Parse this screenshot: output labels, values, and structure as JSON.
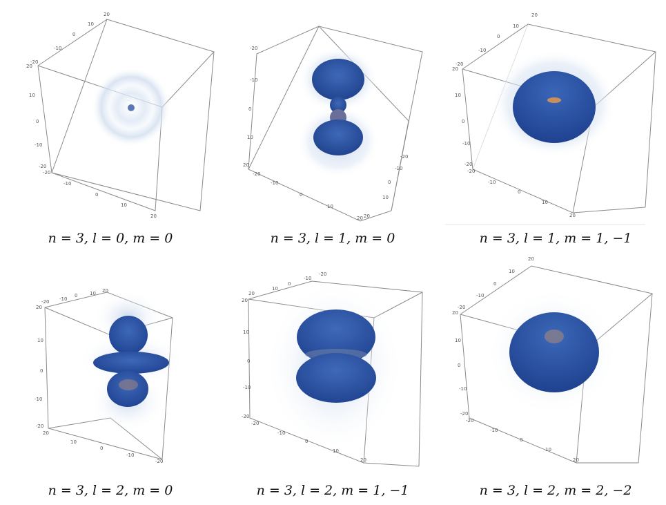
{
  "panels": [
    {
      "caption": "n = 3, l = 0, m = 0",
      "ticks": [
        "20",
        "10",
        "0",
        "-10",
        "-20",
        "20",
        "10",
        "0",
        "-10",
        "-20",
        "-20",
        "-10",
        "0",
        "10",
        "20"
      ]
    },
    {
      "caption": "n = 3, l = 1, m = 0",
      "ticks": [
        "-20",
        "-10",
        "0",
        "10",
        "20",
        "-20",
        "-10",
        "0",
        "10",
        "20",
        "-20",
        "-10",
        "0",
        "10",
        "20"
      ]
    },
    {
      "caption": "n = 3, l = 1, m = 1, −1",
      "ticks": [
        "20",
        "10",
        "0",
        "-10",
        "-20",
        "20",
        "10",
        "0",
        "-10",
        "-20",
        "-20",
        "-10",
        "0",
        "10",
        "20"
      ]
    },
    {
      "caption": "n = 3, l = 2, m = 0",
      "ticks": [
        "20",
        "10",
        "0",
        "-10",
        "-20",
        "20",
        "10",
        "0",
        "-10",
        "-20",
        "20",
        "10",
        "0",
        "-10",
        "-20"
      ]
    },
    {
      "caption": "n = 3, l = 2, m = 1, −1",
      "ticks": [
        "-20",
        "-10",
        "0",
        "10",
        "20",
        "20",
        "10",
        "0",
        "-10",
        "-20",
        "-20",
        "-10",
        "0",
        "10",
        "20"
      ]
    },
    {
      "caption": "n = 3, l = 2, m = 2, −2",
      "ticks": [
        "20",
        "10",
        "0",
        "-10",
        "-20",
        "20",
        "10",
        "0",
        "-10",
        "-20",
        "-20",
        "-10",
        "0",
        "10",
        "20"
      ]
    }
  ],
  "colors": {
    "lobe": "#2f5aa8",
    "core": "#c9905a",
    "haze": "#c7d6ec",
    "box": "#8a8a8a"
  }
}
